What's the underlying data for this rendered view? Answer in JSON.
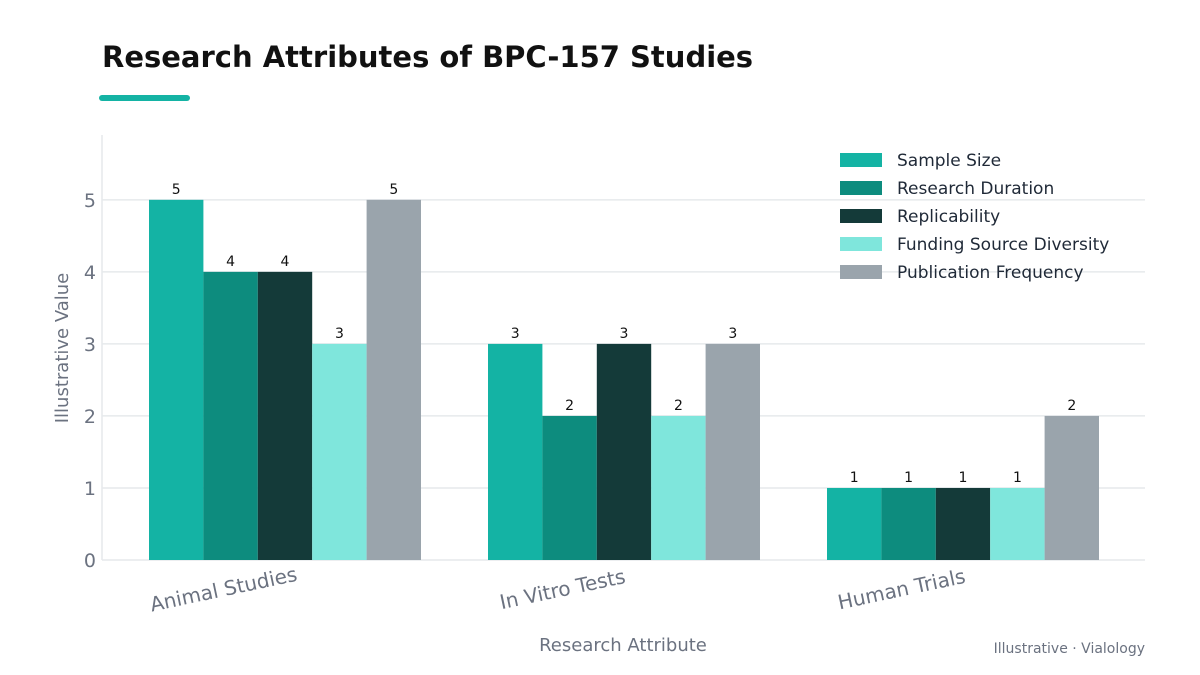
{
  "chart_data": {
    "type": "bar",
    "title": "Research Attributes of BPC-157 Studies",
    "xlabel": "Research Attribute",
    "ylabel": "Illustrative Value",
    "ylim": [
      0,
      5.9
    ],
    "yticks": [
      0,
      1,
      2,
      3,
      4,
      5
    ],
    "grid": true,
    "legend_position": "top-right",
    "categories": [
      "Animal Studies",
      "In Vitro Tests",
      "Human Trials"
    ],
    "series": [
      {
        "name": "Sample Size",
        "color": "#14b3a4",
        "values": [
          5,
          3,
          1
        ]
      },
      {
        "name": "Research Duration",
        "color": "#0d8c7e",
        "values": [
          4,
          2,
          1
        ]
      },
      {
        "name": "Replicability",
        "color": "#143a39",
        "values": [
          4,
          3,
          1
        ]
      },
      {
        "name": "Funding Source Diversity",
        "color": "#7fe6dc",
        "values": [
          3,
          2,
          1
        ]
      },
      {
        "name": "Publication Frequency",
        "color": "#9aa4ac",
        "values": [
          5,
          3,
          2
        ]
      }
    ]
  },
  "credit": "Illustrative · Vialology",
  "colors": {
    "accent": "#14b3a4",
    "grid": "#e6e9ec",
    "axis_text": "#6b7280"
  }
}
